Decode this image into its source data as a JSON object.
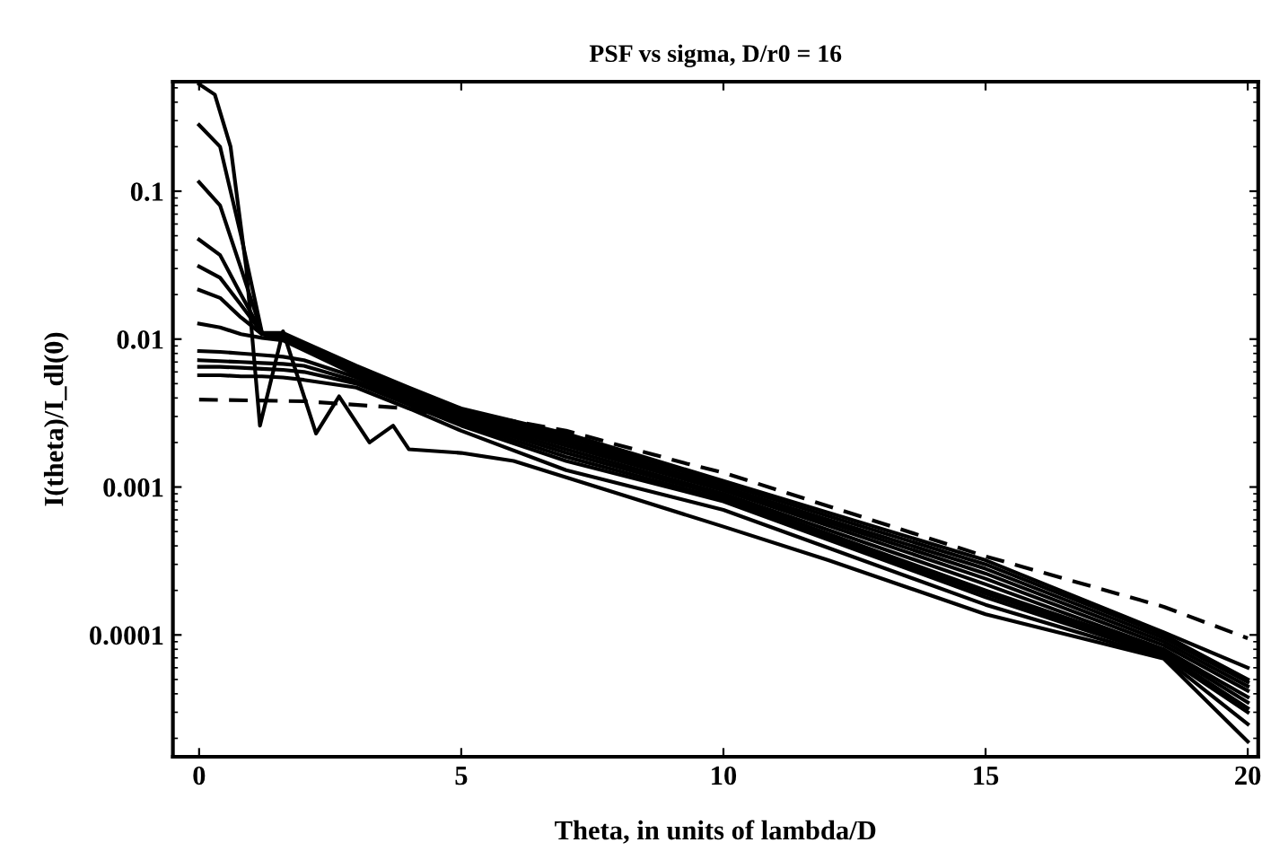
{
  "chart_data": {
    "type": "line",
    "title": "PSF vs sigma, D/r0 = 16",
    "xlabel": "Theta, in units of lambda/D",
    "ylabel": "I(theta)/I_dl(0)",
    "log": "y",
    "xlim": [
      -0.5,
      20.2
    ],
    "ylim": [
      1.5e-05,
      0.55
    ],
    "xticks": [
      0,
      5,
      10,
      15,
      20
    ],
    "yticks": [
      {
        "value": 0.0001,
        "label": "0.0001"
      },
      {
        "value": 0.001,
        "label": "0.001"
      },
      {
        "value": 0.01,
        "label": "0.01"
      },
      {
        "value": 0.1,
        "label": "0.1"
      }
    ],
    "grid": false,
    "marker": "none",
    "series": [
      {
        "color": "#000000",
        "line_style": "solid",
        "x": [
          0,
          0.3,
          0.6,
          0.9,
          1.16,
          1.6,
          2.23,
          2.67,
          3.25,
          3.7,
          4.0,
          5.0,
          6.0,
          8.0,
          10,
          12,
          15,
          18.4,
          20
        ],
        "values": [
          0.53,
          0.45,
          0.2,
          0.03,
          0.0026,
          0.0113,
          0.0023,
          0.0041,
          0.002,
          0.0026,
          0.0018,
          0.0017,
          0.0015,
          0.0009,
          0.00054,
          0.00032,
          0.000138,
          6.9e-05,
          1.9e-05
        ]
      },
      {
        "color": "#000000",
        "line_style": "solid",
        "x": [
          0,
          0.4,
          0.8,
          1.2,
          1.6,
          2,
          3,
          4,
          5,
          7,
          10,
          15,
          18.4,
          20
        ],
        "values": [
          0.28,
          0.2,
          0.05,
          0.011,
          0.011,
          0.0095,
          0.0066,
          0.0047,
          0.0034,
          0.0023,
          0.0011,
          0.00032,
          0.000104,
          6e-05
        ]
      },
      {
        "color": "#000000",
        "line_style": "solid",
        "x": [
          0,
          0.4,
          0.8,
          1.2,
          1.6,
          2,
          3,
          4,
          5,
          7,
          10,
          15,
          18.4,
          20
        ],
        "values": [
          0.115,
          0.08,
          0.03,
          0.011,
          0.0105,
          0.0093,
          0.0064,
          0.0046,
          0.0033,
          0.0022,
          0.00105,
          0.0003,
          0.0001,
          5e-05
        ]
      },
      {
        "color": "#000000",
        "line_style": "solid",
        "x": [
          0,
          0.4,
          0.8,
          1.2,
          1.6,
          2,
          3,
          4,
          5,
          7,
          10,
          15,
          18.4,
          20
        ],
        "values": [
          0.047,
          0.037,
          0.02,
          0.011,
          0.0104,
          0.009,
          0.0062,
          0.0044,
          0.0032,
          0.0021,
          0.001,
          0.00028,
          9.5e-05,
          4.8e-05
        ]
      },
      {
        "color": "#000000",
        "line_style": "solid",
        "x": [
          0,
          0.4,
          0.8,
          1.2,
          1.6,
          2,
          3,
          4,
          5,
          7,
          10,
          15,
          18.4,
          20
        ],
        "values": [
          0.031,
          0.026,
          0.017,
          0.011,
          0.0102,
          0.0088,
          0.006,
          0.0043,
          0.0031,
          0.002,
          0.00098,
          0.00026,
          9e-05,
          4.5e-05
        ]
      },
      {
        "color": "#000000",
        "line_style": "solid",
        "x": [
          0,
          0.4,
          0.8,
          1.2,
          1.6,
          2,
          3,
          4,
          5,
          7,
          10,
          15,
          18.4,
          20
        ],
        "values": [
          0.0215,
          0.019,
          0.014,
          0.0108,
          0.01,
          0.0086,
          0.0059,
          0.0042,
          0.003,
          0.0019,
          0.00095,
          0.00024,
          8.5e-05,
          4.2e-05
        ]
      },
      {
        "color": "#000000",
        "line_style": "solid",
        "x": [
          0,
          0.4,
          0.8,
          1.2,
          1.6,
          2,
          3,
          4,
          5,
          7,
          10,
          15,
          18.4,
          20
        ],
        "values": [
          0.0127,
          0.012,
          0.0108,
          0.0102,
          0.0098,
          0.0084,
          0.0057,
          0.004,
          0.0029,
          0.0018,
          0.0009,
          0.00022,
          8e-05,
          3.8e-05
        ]
      },
      {
        "color": "#000000",
        "line_style": "solid",
        "x": [
          0,
          0.4,
          0.8,
          1.2,
          1.6,
          2,
          3,
          4,
          5,
          7,
          10,
          15,
          18.4,
          20
        ],
        "values": [
          0.0083,
          0.0082,
          0.008,
          0.0078,
          0.0076,
          0.0072,
          0.0055,
          0.0038,
          0.0028,
          0.0017,
          0.00087,
          0.0002,
          7.8e-05,
          3.5e-05
        ]
      },
      {
        "color": "#000000",
        "line_style": "solid",
        "x": [
          0,
          0.4,
          0.8,
          1.2,
          1.6,
          2,
          3,
          4,
          5,
          7,
          10,
          15,
          18.4,
          20
        ],
        "values": [
          0.0072,
          0.0071,
          0.007,
          0.0069,
          0.0068,
          0.0066,
          0.0052,
          0.0037,
          0.0027,
          0.0016,
          0.00083,
          0.00019,
          7.5e-05,
          3.2e-05
        ]
      },
      {
        "color": "#000000",
        "line_style": "solid",
        "x": [
          0,
          0.4,
          0.8,
          1.2,
          1.6,
          2,
          3,
          4,
          5,
          7,
          10,
          15,
          18.4,
          20
        ],
        "values": [
          0.0065,
          0.0065,
          0.0064,
          0.0063,
          0.0062,
          0.006,
          0.005,
          0.0036,
          0.0026,
          0.0015,
          0.0008,
          0.00018,
          7.2e-05,
          3e-05
        ]
      },
      {
        "color": "#000000",
        "line_style": "solid",
        "x": [
          0,
          0.4,
          0.8,
          1.2,
          1.6,
          2,
          3,
          4,
          5,
          7,
          10,
          15,
          18.4,
          20
        ],
        "values": [
          0.0057,
          0.0057,
          0.0056,
          0.0056,
          0.0055,
          0.0053,
          0.0047,
          0.0034,
          0.0024,
          0.0013,
          0.0007,
          0.00016,
          7e-05,
          2.5e-05
        ]
      },
      {
        "color": "#000000",
        "line_style": "dashed",
        "x": [
          0,
          2,
          4,
          4.5,
          5.5,
          7,
          9.3,
          10,
          15,
          18.4,
          20
        ],
        "values": [
          0.0039,
          0.0038,
          0.0034,
          0.0031,
          0.003,
          0.0024,
          0.00144,
          0.00125,
          0.00034,
          0.000155,
          9.5e-05
        ]
      }
    ]
  }
}
